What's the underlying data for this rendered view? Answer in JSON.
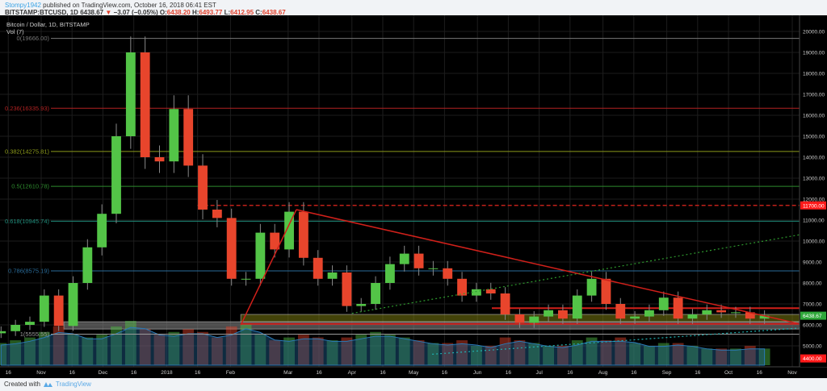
{
  "header": {
    "author": "Stompy1942",
    "published": "published on TradingView.com, October 16, 2018 06:41 EST",
    "symbol": "BITSTAMP:BTCUSD, 1D",
    "last": "6438.67",
    "change": "−3.07 (−0.05%)",
    "open_label": "O:",
    "open": "6438.20",
    "high_label": "H:",
    "high": "6493.77",
    "low_label": "L:",
    "low": "6412.95",
    "close_label": "C:",
    "close": "6438.67"
  },
  "chart_title": "Bitcoin / Dollar, 1D, BITSTAMP",
  "volume_label": "Vol (7)",
  "footer": {
    "created_with": "Created with",
    "brand": "TradingView"
  },
  "colors": {
    "up": "#53c447",
    "down": "#e8452c",
    "background": "#000000",
    "grid": "#1d1d1d",
    "volume_ma": "#1f5f8f"
  },
  "chart_data": {
    "type": "candlestick",
    "interval_shown": "1D",
    "note_sampling": "weekly",
    "ylim": [
      4400,
      20000
    ],
    "price_ticks": [
      20000,
      19000,
      18000,
      17000,
      16000,
      15000,
      14000,
      13000,
      12000,
      11000,
      10000,
      9000,
      8000,
      7000,
      6000,
      5000
    ],
    "price_tick_labels": [
      "20000.00",
      "19000.00",
      "18000.00",
      "17000.00",
      "16000.00",
      "15000.00",
      "14000.00",
      "13000.00",
      "12000.00",
      "11000.00",
      "10000.00",
      "9000.00",
      "8000.00",
      "7000.00",
      "6000.00",
      "5000.00"
    ],
    "price_markers": [
      {
        "label": "11700.00",
        "price": 11700,
        "color": "#ff1a1a"
      },
      {
        "label": "6438.67",
        "price": 6438.67,
        "color": "#2fa83a"
      },
      {
        "label": "4400.00",
        "price": 4400,
        "color": "#ff1a1a"
      }
    ],
    "time_ticks": [
      {
        "label": "16",
        "date": "2017-10-16"
      },
      {
        "label": "Nov",
        "date": "2017-11-01"
      },
      {
        "label": "16",
        "date": "2017-11-16"
      },
      {
        "label": "Dec",
        "date": "2017-12-01"
      },
      {
        "label": "16",
        "date": "2017-12-16"
      },
      {
        "label": "2018",
        "date": "2018-01-01"
      },
      {
        "label": "16",
        "date": "2018-01-16"
      },
      {
        "label": "Feb",
        "date": "2018-02-01"
      },
      {
        "label": "Mar",
        "date": "2018-03-01"
      },
      {
        "label": "16",
        "date": "2018-03-16"
      },
      {
        "label": "Apr",
        "date": "2018-04-01"
      },
      {
        "label": "16",
        "date": "2018-04-16"
      },
      {
        "label": "May",
        "date": "2018-05-01"
      },
      {
        "label": "16",
        "date": "2018-05-16"
      },
      {
        "label": "Jun",
        "date": "2018-06-01"
      },
      {
        "label": "16",
        "date": "2018-06-16"
      },
      {
        "label": "Jul",
        "date": "2018-07-01"
      },
      {
        "label": "16",
        "date": "2018-07-16"
      },
      {
        "label": "Aug",
        "date": "2018-08-01"
      },
      {
        "label": "16",
        "date": "2018-08-16"
      },
      {
        "label": "Sep",
        "date": "2018-09-01"
      },
      {
        "label": "16",
        "date": "2018-09-16"
      },
      {
        "label": "Oct",
        "date": "2018-10-01"
      },
      {
        "label": "16",
        "date": "2018-10-16"
      },
      {
        "label": "Nov",
        "date": "2018-11-01"
      }
    ],
    "weeks": [
      "2017-10-09",
      "2017-10-16",
      "2017-10-23",
      "2017-10-30",
      "2017-11-06",
      "2017-11-13",
      "2017-11-20",
      "2017-11-27",
      "2017-12-04",
      "2017-12-11",
      "2017-12-18",
      "2017-12-25",
      "2018-01-01",
      "2018-01-08",
      "2018-01-15",
      "2018-01-22",
      "2018-01-29",
      "2018-02-05",
      "2018-02-12",
      "2018-02-19",
      "2018-02-26",
      "2018-03-05",
      "2018-03-12",
      "2018-03-19",
      "2018-03-26",
      "2018-04-02",
      "2018-04-09",
      "2018-04-16",
      "2018-04-23",
      "2018-04-30",
      "2018-05-07",
      "2018-05-14",
      "2018-05-21",
      "2018-05-28",
      "2018-06-04",
      "2018-06-11",
      "2018-06-18",
      "2018-06-25",
      "2018-07-02",
      "2018-07-09",
      "2018-07-16",
      "2018-07-23",
      "2018-07-30",
      "2018-08-06",
      "2018-08-13",
      "2018-08-20",
      "2018-08-27",
      "2018-09-03",
      "2018-09-10",
      "2018-09-17",
      "2018-09-24",
      "2018-10-01",
      "2018-10-08",
      "2018-10-15"
    ],
    "first_open": 5600,
    "close": [
      5700,
      6000,
      6150,
      7400,
      5950,
      8000,
      9700,
      11300,
      15000,
      19000,
      14000,
      13800,
      16300,
      13600,
      11500,
      11100,
      8200,
      8200,
      10400,
      9600,
      11400,
      9200,
      8200,
      8500,
      6900,
      7000,
      8000,
      8900,
      9400,
      8700,
      8700,
      8200,
      7400,
      7700,
      7500,
      6500,
      6100,
      6400,
      6700,
      6300,
      7400,
      8200,
      7000,
      6300,
      6400,
      6700,
      7300,
      6300,
      6500,
      6700,
      6600,
      6600,
      6300,
      6440
    ],
    "volume_relative": [
      40,
      45,
      50,
      60,
      70,
      55,
      50,
      55,
      70,
      80,
      65,
      55,
      60,
      65,
      60,
      50,
      70,
      75,
      55,
      45,
      50,
      55,
      50,
      45,
      50,
      55,
      60,
      55,
      50,
      45,
      40,
      40,
      45,
      35,
      35,
      50,
      45,
      40,
      35,
      35,
      45,
      50,
      45,
      50,
      40,
      35,
      40,
      40,
      35,
      30,
      30,
      30,
      35,
      30
    ],
    "fib_levels": [
      {
        "label": "0(19666.00)",
        "price": 19666.0,
        "color": "#787878"
      },
      {
        "label": "0.236(16335.93)",
        "price": 16335.93,
        "color": "#b22222"
      },
      {
        "label": "0.382(14275.81)",
        "price": 14275.81,
        "color": "#8c9a1a"
      },
      {
        "label": "0.5(12610.78)",
        "price": 12610.78,
        "color": "#2e8b2e"
      },
      {
        "label": "0.618(10945.74)",
        "price": 10945.74,
        "color": "#1e8c7a"
      },
      {
        "label": "0.786(8575.19)",
        "price": 8575.19,
        "color": "#2a6c9a"
      },
      {
        "label": "1(5555.55)",
        "price": 5555.55,
        "color": "#9a9a9a"
      }
    ],
    "horizontal_lines": [
      {
        "price": 11700,
        "from": "2018-01-16",
        "color": "#c0201a",
        "style": "dashed"
      },
      {
        "price": 6800,
        "from": "2018-06-08",
        "color": "#d0201a",
        "style": "solid"
      },
      {
        "price": 6050,
        "from": "2018-02-06",
        "color": "#d0201a",
        "style": "solid"
      }
    ],
    "zones": [
      {
        "low": 5800,
        "high": 6150,
        "from": "2017-11-12",
        "color": "#8a8a8a"
      },
      {
        "low": 6150,
        "high": 6500,
        "from": "2018-02-06",
        "color": "#7a7a10"
      }
    ],
    "trend_lines": [
      {
        "from": {
          "date": "2018-03-05",
          "price": 11500
        },
        "to": {
          "date": "2018-11-15",
          "price": 6050
        },
        "color": "#d0201a",
        "style": "solid"
      },
      {
        "from": {
          "date": "2018-02-06",
          "price": 6000
        },
        "to": {
          "date": "2018-03-05",
          "price": 11500
        },
        "color": "#d0201a",
        "style": "solid"
      },
      {
        "from": {
          "date": "2018-04-01",
          "price": 6550
        },
        "to": {
          "date": "2018-11-15",
          "price": 10300
        },
        "color": "#2e9a2e",
        "style": "dotted"
      },
      {
        "from": {
          "date": "2018-05-10",
          "price": 4600
        },
        "to": {
          "date": "2018-11-15",
          "price": 5850
        },
        "color": "#1fb0b0",
        "style": "dotted"
      }
    ]
  }
}
